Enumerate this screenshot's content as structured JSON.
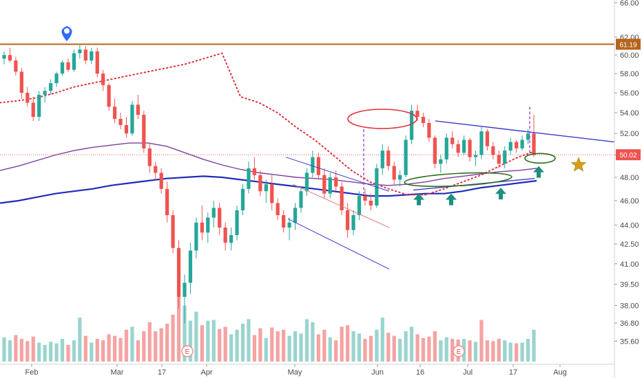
{
  "chart_data": {
    "type": "candlestick",
    "title": "",
    "y_axis": {
      "side": "right",
      "scale": "log",
      "ticks": [
        "66.00",
        "62.00",
        "60.00",
        "58.00",
        "56.00",
        "54.00",
        "52.00",
        "50.00",
        "48.00",
        "46.00",
        "44.00",
        "42.50",
        "41.00",
        "39.50",
        "38.00",
        "36.80",
        "35.60"
      ],
      "range": [
        35.0,
        66.0
      ]
    },
    "x_axis": {
      "ticks": [
        "Feb",
        "Mar",
        "17",
        "Apr",
        "May",
        "Jun",
        "16",
        "Jul",
        "17",
        "Aug"
      ]
    },
    "price_levels": [
      {
        "label": "61.19",
        "value": 61.19,
        "color": "#b5651d"
      },
      {
        "label": "50.02",
        "value": 50.02,
        "color": "#ef5350"
      }
    ],
    "colors": {
      "up": "#26a69a",
      "down": "#ef5350",
      "vol_up": "#9bd4cf",
      "vol_down": "#f5a3a3",
      "ma_long": "#1f2bb8",
      "ma_mid": "#7b3c9c",
      "psar": "#e0303a",
      "channel": "#3b38c9",
      "resistance": "#b5651d",
      "annot_red": "#e0303a",
      "annot_green": "#2e6b1f",
      "arrow": "#1b8f80",
      "star": "#d4a017"
    },
    "candles": [
      [
        59.6,
        60.4,
        59.0,
        60.0
      ],
      [
        60.0,
        60.8,
        59.2,
        59.4
      ],
      [
        59.4,
        59.8,
        57.8,
        58.2
      ],
      [
        58.2,
        58.6,
        55.4,
        56.0
      ],
      [
        56.0,
        56.6,
        54.6,
        55.0
      ],
      [
        55.0,
        55.6,
        53.2,
        53.6
      ],
      [
        53.6,
        56.2,
        53.2,
        55.8
      ],
      [
        55.8,
        56.6,
        55.0,
        56.2
      ],
      [
        56.2,
        57.4,
        55.8,
        57.0
      ],
      [
        57.0,
        58.2,
        56.6,
        58.0
      ],
      [
        58.0,
        59.4,
        57.8,
        59.2
      ],
      [
        59.2,
        59.6,
        58.2,
        58.4
      ],
      [
        58.4,
        60.6,
        58.2,
        60.2
      ],
      [
        60.2,
        61.2,
        59.6,
        60.6
      ],
      [
        60.6,
        61.0,
        59.0,
        59.4
      ],
      [
        59.4,
        60.8,
        59.0,
        60.4
      ],
      [
        60.4,
        60.8,
        57.6,
        58.0
      ],
      [
        58.0,
        58.4,
        56.2,
        56.8
      ],
      [
        56.8,
        57.0,
        54.2,
        54.6
      ],
      [
        54.6,
        55.4,
        53.0,
        53.4
      ],
      [
        53.4,
        54.0,
        52.4,
        52.8
      ],
      [
        52.8,
        53.6,
        51.6,
        52.0
      ],
      [
        52.0,
        55.2,
        51.8,
        54.8
      ],
      [
        54.8,
        55.8,
        53.4,
        53.8
      ],
      [
        53.8,
        54.2,
        50.2,
        50.6
      ],
      [
        50.6,
        51.0,
        48.4,
        49.0
      ],
      [
        49.0,
        49.4,
        47.8,
        48.4
      ],
      [
        48.4,
        48.8,
        46.6,
        47.0
      ],
      [
        47.0,
        47.6,
        44.2,
        44.8
      ],
      [
        44.8,
        45.2,
        41.8,
        42.2
      ],
      [
        42.2,
        42.8,
        37.8,
        38.6
      ],
      [
        38.6,
        40.2,
        36.8,
        39.6
      ],
      [
        39.6,
        42.6,
        38.8,
        42.0
      ],
      [
        42.0,
        44.6,
        41.4,
        44.2
      ],
      [
        44.2,
        45.6,
        42.8,
        43.4
      ],
      [
        43.4,
        45.0,
        42.6,
        44.6
      ],
      [
        44.6,
        46.0,
        43.8,
        45.4
      ],
      [
        45.4,
        45.8,
        43.2,
        43.8
      ],
      [
        43.8,
        44.2,
        42.0,
        42.6
      ],
      [
        42.6,
        43.8,
        42.0,
        43.2
      ],
      [
        43.2,
        45.6,
        42.8,
        45.2
      ],
      [
        45.2,
        47.4,
        44.8,
        47.0
      ],
      [
        47.0,
        49.4,
        46.6,
        48.8
      ],
      [
        48.8,
        49.8,
        47.8,
        48.2
      ],
      [
        48.2,
        48.6,
        46.4,
        46.8
      ],
      [
        46.8,
        47.8,
        45.8,
        47.4
      ],
      [
        47.4,
        48.2,
        45.2,
        45.8
      ],
      [
        45.8,
        46.2,
        44.4,
        44.8
      ],
      [
        44.8,
        45.2,
        43.4,
        43.8
      ],
      [
        43.8,
        44.6,
        42.8,
        44.2
      ],
      [
        44.2,
        45.8,
        43.6,
        45.4
      ],
      [
        45.4,
        47.2,
        45.0,
        46.8
      ],
      [
        46.8,
        48.8,
        46.4,
        48.4
      ],
      [
        48.4,
        50.4,
        48.0,
        49.8
      ],
      [
        49.8,
        50.2,
        47.8,
        48.2
      ],
      [
        48.2,
        48.8,
        46.2,
        46.6
      ],
      [
        46.6,
        48.4,
        46.2,
        48.0
      ],
      [
        48.0,
        48.6,
        46.8,
        47.2
      ],
      [
        47.2,
        47.6,
        44.8,
        45.2
      ],
      [
        45.2,
        45.8,
        43.0,
        43.6
      ],
      [
        43.6,
        45.2,
        43.2,
        44.8
      ],
      [
        44.8,
        46.8,
        44.4,
        46.4
      ],
      [
        46.4,
        47.0,
        45.6,
        46.0
      ],
      [
        46.0,
        46.6,
        45.2,
        45.6
      ],
      [
        45.6,
        49.2,
        45.4,
        48.8
      ],
      [
        48.8,
        51.0,
        48.2,
        50.4
      ],
      [
        50.4,
        50.8,
        48.6,
        49.0
      ],
      [
        49.0,
        49.4,
        47.4,
        47.8
      ],
      [
        47.8,
        48.6,
        47.2,
        48.2
      ],
      [
        48.2,
        51.8,
        48.0,
        51.4
      ],
      [
        51.4,
        54.8,
        51.0,
        54.2
      ],
      [
        54.2,
        54.8,
        53.2,
        53.6
      ],
      [
        53.6,
        54.0,
        52.6,
        53.0
      ],
      [
        53.0,
        53.4,
        51.2,
        51.6
      ],
      [
        51.6,
        51.8,
        48.8,
        49.2
      ],
      [
        49.2,
        50.0,
        48.4,
        49.6
      ],
      [
        49.6,
        52.0,
        49.2,
        51.6
      ],
      [
        51.6,
        52.2,
        50.6,
        51.0
      ],
      [
        51.0,
        51.4,
        49.8,
        50.2
      ],
      [
        50.2,
        51.8,
        50.0,
        51.4
      ],
      [
        51.4,
        51.6,
        49.4,
        49.8
      ],
      [
        49.8,
        50.4,
        49.0,
        50.0
      ],
      [
        50.0,
        52.6,
        49.6,
        52.2
      ],
      [
        52.2,
        52.4,
        50.4,
        50.8
      ],
      [
        50.8,
        51.2,
        49.6,
        50.0
      ],
      [
        50.0,
        50.4,
        48.8,
        49.2
      ],
      [
        49.2,
        50.8,
        48.8,
        50.4
      ],
      [
        50.4,
        51.6,
        50.0,
        51.2
      ],
      [
        51.2,
        51.4,
        50.2,
        50.6
      ],
      [
        50.6,
        51.8,
        50.4,
        51.4
      ],
      [
        51.4,
        52.4,
        51.0,
        52.0
      ],
      [
        52.0,
        53.8,
        49.8,
        50.0
      ]
    ],
    "volumes": [
      [
        0.32,
        1
      ],
      [
        0.28,
        1
      ],
      [
        0.35,
        0
      ],
      [
        0.3,
        0
      ],
      [
        0.27,
        0
      ],
      [
        0.33,
        0
      ],
      [
        0.25,
        1
      ],
      [
        0.22,
        1
      ],
      [
        0.26,
        1
      ],
      [
        0.24,
        1
      ],
      [
        0.3,
        1
      ],
      [
        0.22,
        0
      ],
      [
        0.28,
        1
      ],
      [
        0.58,
        1
      ],
      [
        0.34,
        0
      ],
      [
        0.25,
        1
      ],
      [
        0.3,
        0
      ],
      [
        0.28,
        0
      ],
      [
        0.36,
        0
      ],
      [
        0.34,
        0
      ],
      [
        0.31,
        0
      ],
      [
        0.42,
        0
      ],
      [
        0.46,
        1
      ],
      [
        0.28,
        0
      ],
      [
        0.4,
        0
      ],
      [
        0.52,
        0
      ],
      [
        0.4,
        0
      ],
      [
        0.44,
        0
      ],
      [
        0.5,
        0
      ],
      [
        0.62,
        0
      ],
      [
        0.86,
        0
      ],
      [
        0.74,
        1
      ],
      [
        0.54,
        1
      ],
      [
        0.66,
        1
      ],
      [
        0.48,
        0
      ],
      [
        0.54,
        1
      ],
      [
        0.55,
        1
      ],
      [
        0.43,
        0
      ],
      [
        0.46,
        0
      ],
      [
        0.36,
        1
      ],
      [
        0.42,
        1
      ],
      [
        0.5,
        1
      ],
      [
        0.56,
        1
      ],
      [
        0.35,
        0
      ],
      [
        0.44,
        0
      ],
      [
        0.31,
        1
      ],
      [
        0.45,
        0
      ],
      [
        0.4,
        0
      ],
      [
        0.42,
        0
      ],
      [
        0.34,
        1
      ],
      [
        0.4,
        1
      ],
      [
        0.37,
        1
      ],
      [
        0.56,
        1
      ],
      [
        0.52,
        1
      ],
      [
        0.36,
        0
      ],
      [
        0.42,
        0
      ],
      [
        0.32,
        1
      ],
      [
        0.28,
        0
      ],
      [
        0.46,
        0
      ],
      [
        0.48,
        0
      ],
      [
        0.4,
        1
      ],
      [
        0.37,
        1
      ],
      [
        0.3,
        0
      ],
      [
        0.34,
        0
      ],
      [
        0.42,
        1
      ],
      [
        0.58,
        1
      ],
      [
        0.38,
        0
      ],
      [
        0.34,
        0
      ],
      [
        0.3,
        1
      ],
      [
        0.4,
        1
      ],
      [
        0.46,
        1
      ],
      [
        0.36,
        0
      ],
      [
        0.31,
        0
      ],
      [
        0.33,
        0
      ],
      [
        0.4,
        0
      ],
      [
        0.28,
        1
      ],
      [
        0.32,
        1
      ],
      [
        0.3,
        0
      ],
      [
        0.29,
        0
      ],
      [
        0.3,
        1
      ],
      [
        0.28,
        0
      ],
      [
        0.26,
        1
      ],
      [
        0.55,
        0
      ],
      [
        0.28,
        0
      ],
      [
        0.27,
        0
      ],
      [
        0.3,
        0
      ],
      [
        0.28,
        1
      ],
      [
        0.25,
        1
      ],
      [
        0.24,
        0
      ],
      [
        0.25,
        1
      ],
      [
        0.3,
        1
      ],
      [
        0.42,
        1
      ]
    ],
    "ma_long": [
      45.8,
      46.0,
      46.3,
      46.6,
      46.8,
      47.0,
      47.3,
      47.5,
      47.7,
      47.9,
      48.0,
      48.1,
      48.0,
      47.8,
      47.6,
      47.4,
      47.2,
      47.0,
      46.8,
      46.6,
      46.4,
      46.4,
      46.5,
      46.6,
      46.6,
      46.8,
      47.1,
      47.3,
      47.5,
      47.7
    ],
    "ma_mid": [
      48.6,
      49.0,
      49.5,
      50.0,
      50.4,
      50.7,
      50.9,
      51.1,
      51.1,
      50.8,
      50.2,
      49.6,
      49.1,
      48.7,
      48.4,
      48.2,
      48.0,
      47.9,
      47.8,
      47.6,
      47.4,
      47.3,
      47.4,
      47.6,
      47.9,
      48.1,
      48.3,
      48.5,
      48.6,
      48.8
    ],
    "psar": [
      55.0,
      55.2,
      55.5,
      56.0,
      56.6,
      57.0,
      57.4,
      57.8,
      58.2,
      58.6,
      59.0,
      59.6,
      60.2,
      55.6,
      55.0,
      54.0,
      52.6,
      51.4,
      50.0,
      48.6,
      47.6,
      47.0,
      46.5,
      46.5,
      47.0,
      47.6,
      48.2,
      49.0,
      49.8,
      50.4
    ]
  },
  "labels": {
    "last_price": "50.02",
    "resistance_price": "61.19",
    "earnings_marker": "E"
  }
}
